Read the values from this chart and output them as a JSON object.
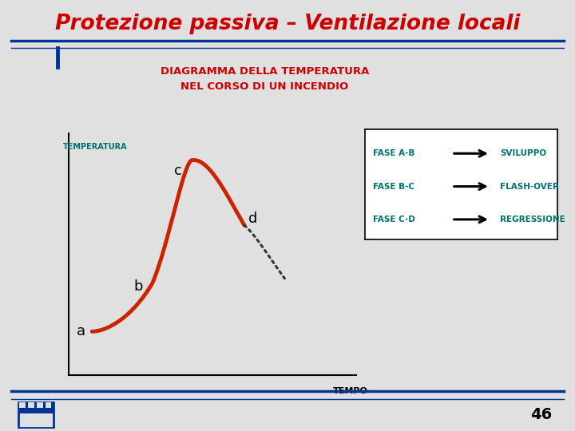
{
  "title": "Protezione passiva – Ventilazione locali",
  "subtitle_line1": "DIAGRAMMA DELLA TEMPERATURA",
  "subtitle_line2": "NEL CORSO DI UN INCENDIO",
  "ylabel": "TEMPERATURA",
  "xlabel": "TEMPO",
  "title_color": "#cc0000",
  "subtitle_color": "#cc0000",
  "axis_label_color": "#007070",
  "curve_color": "#cc2200",
  "background_color": "#e0e0e0",
  "legend_labels": [
    "FASE A-B",
    "FASE B-C",
    "FASE C-D"
  ],
  "legend_descriptions": [
    "SVILUPPO",
    "FLASH-OVER",
    "REGRESSIONE"
  ],
  "page_number": "46",
  "header_bar_color": "#003399",
  "bottom_bar_color": "#003399"
}
